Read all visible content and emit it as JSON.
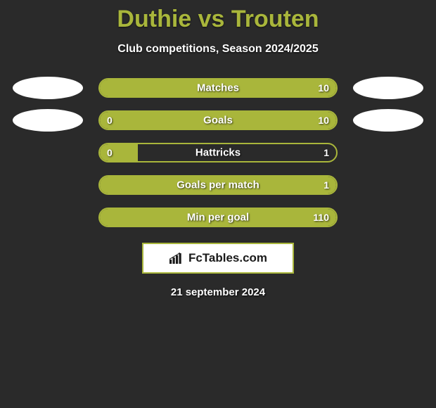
{
  "colors": {
    "page_bg": "#2a2a2a",
    "title_color": "#a9b63b",
    "subtitle_color": "#ffffff",
    "bar_border": "#a9b63b",
    "bar_fill": "#a9b63b",
    "bar_track_bg": "transparent",
    "avatar_bg": "#ffffff",
    "logo_border": "#a9b63b",
    "logo_bg": "#ffffff",
    "logo_text": "#1a1a1a",
    "logo_icon": "#1a1a1a",
    "date_color": "#ffffff"
  },
  "title": "Duthie vs Trouten",
  "subtitle": "Club competitions, Season 2024/2025",
  "rows": [
    {
      "label": "Matches",
      "left_value": "",
      "right_value": "10",
      "left_pct": 0,
      "right_pct": 100,
      "show_avatars": true
    },
    {
      "label": "Goals",
      "left_value": "0",
      "right_value": "10",
      "left_pct": 16,
      "right_pct": 84,
      "show_avatars": true
    },
    {
      "label": "Hattricks",
      "left_value": "0",
      "right_value": "1",
      "left_pct": 16,
      "right_pct": 0,
      "show_avatars": false
    },
    {
      "label": "Goals per match",
      "left_value": "",
      "right_value": "1",
      "left_pct": 0,
      "right_pct": 100,
      "show_avatars": false
    },
    {
      "label": "Min per goal",
      "left_value": "",
      "right_value": "110",
      "left_pct": 0,
      "right_pct": 100,
      "show_avatars": false
    }
  ],
  "logo_text": "FcTables.com",
  "date_text": "21 september 2024"
}
